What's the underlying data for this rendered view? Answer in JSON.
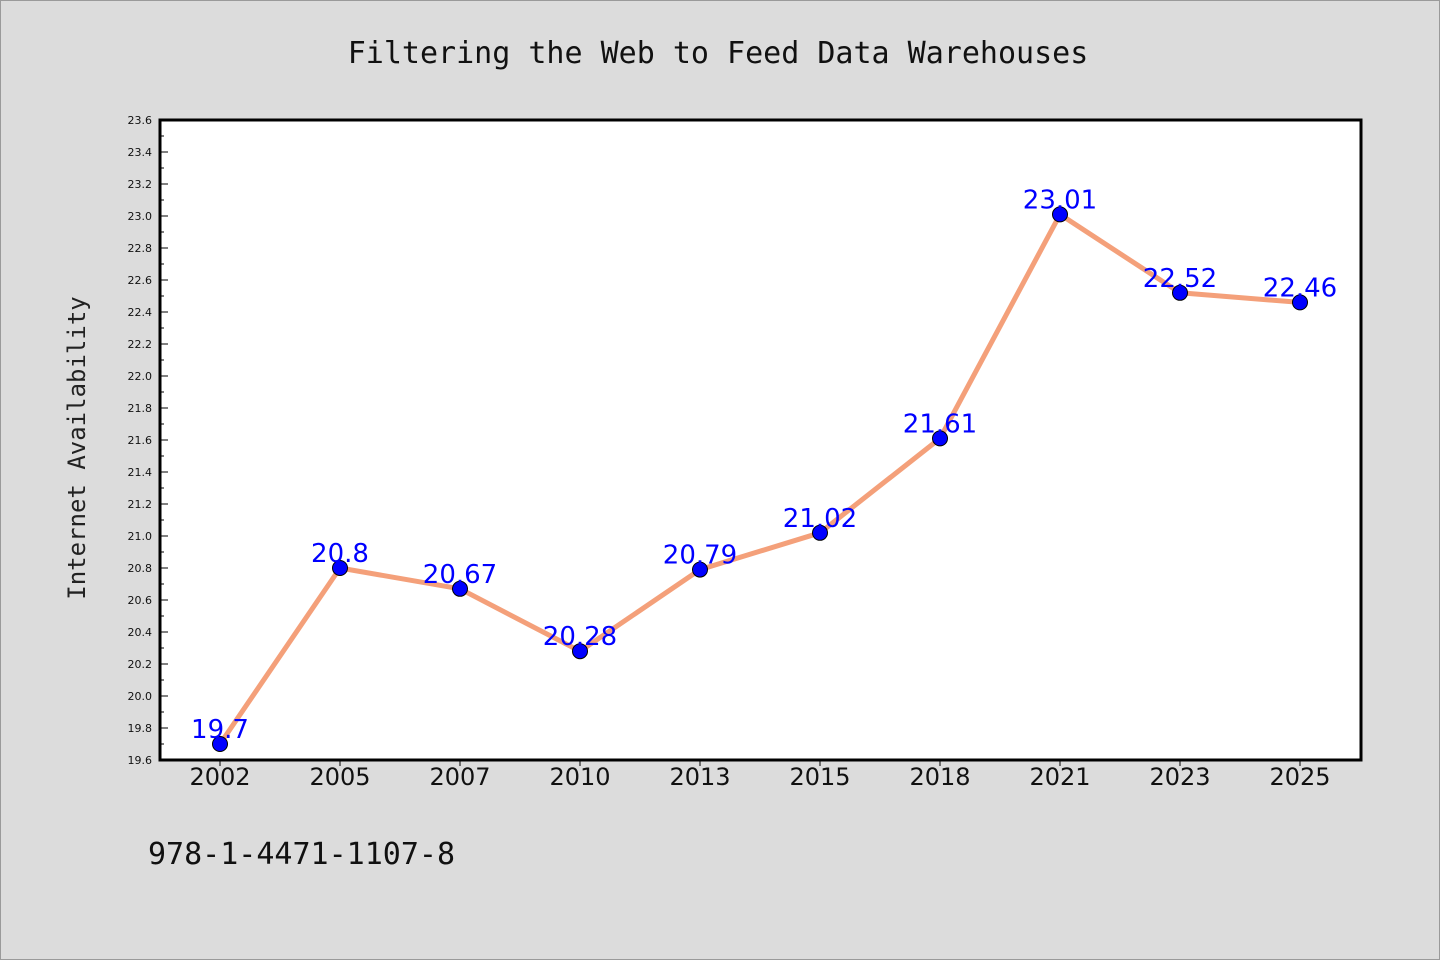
{
  "chart_data": {
    "type": "line",
    "title": "Filtering the Web to Feed Data Warehouses",
    "xlabel": "",
    "ylabel": "Internet Availability",
    "categories": [
      "2002",
      "2005",
      "2007",
      "2010",
      "2013",
      "2015",
      "2018",
      "2021",
      "2023",
      "2025"
    ],
    "series": [
      {
        "values": [
          19.7,
          20.8,
          20.67,
          20.28,
          20.79,
          21.02,
          21.61,
          23.01,
          22.52,
          22.46
        ]
      }
    ],
    "data_labels": [
      "19.7",
      "20.8",
      "20.67",
      "20.28",
      "20.79",
      "21.02",
      "21.61",
      "23.01",
      "22.52",
      "22.46"
    ],
    "ylim": [
      19.6,
      23.6
    ],
    "yticks": [
      "19.6",
      "19.8",
      "20.0",
      "20.2",
      "20.4",
      "20.6",
      "20.8",
      "21.0",
      "21.2",
      "21.4",
      "21.6",
      "21.8",
      "22.0",
      "22.2",
      "22.4",
      "22.6",
      "22.8",
      "23.0",
      "23.2",
      "23.4",
      "23.6"
    ],
    "grid": false,
    "legend": "none",
    "colors": {
      "line": "#f4a07a",
      "marker": "#0000ff",
      "data_label": "#0000ff",
      "background": "#dcdcdc",
      "plot_area": "#ffffff"
    }
  },
  "footer_text": "978-1-4471-1107-8"
}
